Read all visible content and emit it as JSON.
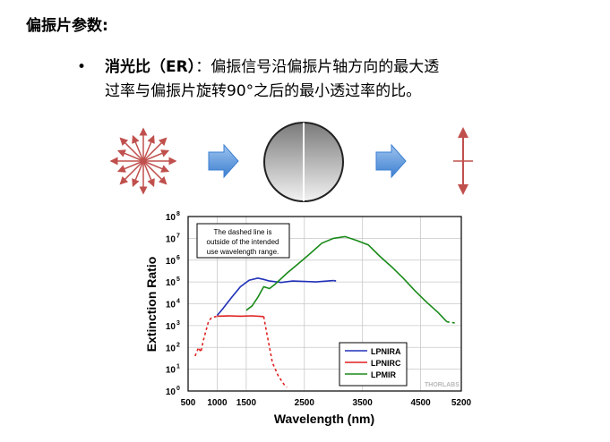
{
  "slide": {
    "title": "偏振片参数:",
    "bullet": {
      "term": "消光比（ER）",
      "colon": "：",
      "line1": "偏振信号沿偏振片轴方向的最大透",
      "line2": "过率与偏振片旋转90°之后的最小透过率的比。"
    }
  },
  "diagram": {
    "icons": [
      "unpolarized-light-icon",
      "arrow-right-icon",
      "polarizer-disk-icon",
      "arrow-right-icon",
      "polarized-light-icon"
    ],
    "colors": {
      "ray": "#c0504d",
      "arrow": "#4f8fd8"
    }
  },
  "chart_data": {
    "type": "line",
    "xlabel": "Wavelength (nm)",
    "ylabel": "Extinction Ratio",
    "xlim": [
      500,
      5200
    ],
    "ylim_log10": [
      0,
      8
    ],
    "xticks": [
      "500",
      "1000",
      "1500",
      "2500",
      "3500",
      "4500",
      "5200"
    ],
    "xtick_values": [
      500,
      1000,
      1500,
      2500,
      3500,
      4500,
      5200
    ],
    "yticks": [
      {
        "base": "10",
        "exp": "0"
      },
      {
        "base": "10",
        "exp": "1"
      },
      {
        "base": "10",
        "exp": "2"
      },
      {
        "base": "10",
        "exp": "3"
      },
      {
        "base": "10",
        "exp": "4"
      },
      {
        "base": "10",
        "exp": "5"
      },
      {
        "base": "10",
        "exp": "6"
      },
      {
        "base": "10",
        "exp": "7"
      },
      {
        "base": "10",
        "exp": "8"
      }
    ],
    "grid": true,
    "legend_position": "bottom-right",
    "annotation": [
      "The dashed line is",
      "outside of the intended",
      "use wavelength range."
    ],
    "watermark": "THORLABS",
    "series": [
      {
        "name": "LPNIRA",
        "color": "#2030b8",
        "solid": [
          [
            1000,
            2900
          ],
          [
            1100,
            6000
          ],
          [
            1250,
            20000
          ],
          [
            1400,
            60000
          ],
          [
            1550,
            120000
          ],
          [
            1700,
            150000
          ],
          [
            1800,
            130000
          ],
          [
            1900,
            110000
          ],
          [
            2100,
            95000
          ],
          [
            2300,
            110000
          ],
          [
            2500,
            105000
          ],
          [
            2700,
            100000
          ],
          [
            2900,
            110000
          ],
          [
            3000,
            115000
          ]
        ],
        "dashed": [
          [
            3000,
            115000
          ],
          [
            3050,
            110000
          ]
        ]
      },
      {
        "name": "LPNIRC",
        "color": "#e02020",
        "solid": [
          [
            1000,
            2700
          ],
          [
            1200,
            2800
          ],
          [
            1400,
            2700
          ],
          [
            1600,
            2800
          ],
          [
            1800,
            2600
          ]
        ],
        "dashed_before": [
          [
            620,
            40
          ],
          [
            680,
            100
          ],
          [
            720,
            60
          ],
          [
            760,
            200
          ],
          [
            800,
            500
          ],
          [
            850,
            1500
          ],
          [
            900,
            2300
          ],
          [
            1000,
            2700
          ]
        ],
        "dashed_after": [
          [
            1800,
            2600
          ],
          [
            1850,
            500
          ],
          [
            1900,
            100
          ],
          [
            1950,
            20
          ],
          [
            2050,
            5
          ],
          [
            2150,
            2
          ],
          [
            2200,
            1.5
          ]
        ]
      },
      {
        "name": "LPMIR",
        "color": "#1a8a1a",
        "solid": [
          [
            1500,
            5000
          ],
          [
            1600,
            8000
          ],
          [
            1700,
            20000
          ],
          [
            1800,
            60000
          ],
          [
            1900,
            50000
          ],
          [
            2000,
            80000
          ],
          [
            2200,
            250000
          ],
          [
            2400,
            700000
          ],
          [
            2600,
            2000000
          ],
          [
            2800,
            6000000
          ],
          [
            3000,
            10000000
          ],
          [
            3200,
            12000000
          ],
          [
            3400,
            8000000
          ],
          [
            3600,
            5000000
          ],
          [
            3800,
            1500000
          ],
          [
            4000,
            500000
          ],
          [
            4200,
            150000
          ],
          [
            4400,
            40000
          ],
          [
            4600,
            12000
          ],
          [
            4800,
            4000
          ],
          [
            4950,
            1500
          ]
        ],
        "dashed": [
          [
            4950,
            1500
          ],
          [
            5100,
            1300
          ]
        ]
      }
    ]
  }
}
